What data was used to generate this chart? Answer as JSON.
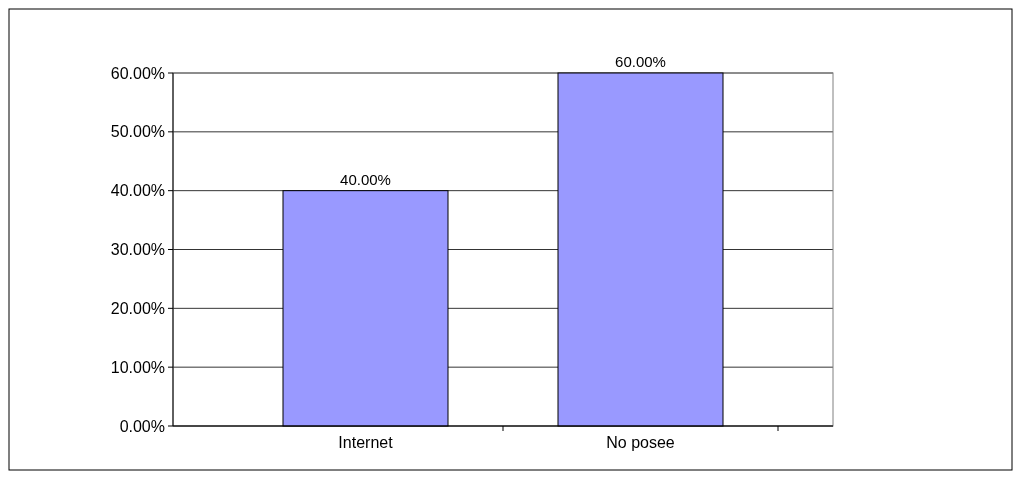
{
  "chart_data": {
    "type": "bar",
    "categories": [
      "Internet",
      "No posee"
    ],
    "values": [
      40,
      60
    ],
    "color": "#9999ff",
    "ylim": [
      0,
      60
    ],
    "yticks": [
      {
        "value": 0,
        "label": "0.00%"
      },
      {
        "value": 10,
        "label": "10.00%"
      },
      {
        "value": 20,
        "label": "20.00%"
      },
      {
        "value": 30,
        "label": "30.00%"
      },
      {
        "value": 40,
        "label": "40.00%"
      },
      {
        "value": 50,
        "label": "50.00%"
      },
      {
        "value": 60,
        "label": "60.00%"
      }
    ],
    "value_labels": [
      "40.00%",
      "60.00%"
    ],
    "grid": "y"
  }
}
